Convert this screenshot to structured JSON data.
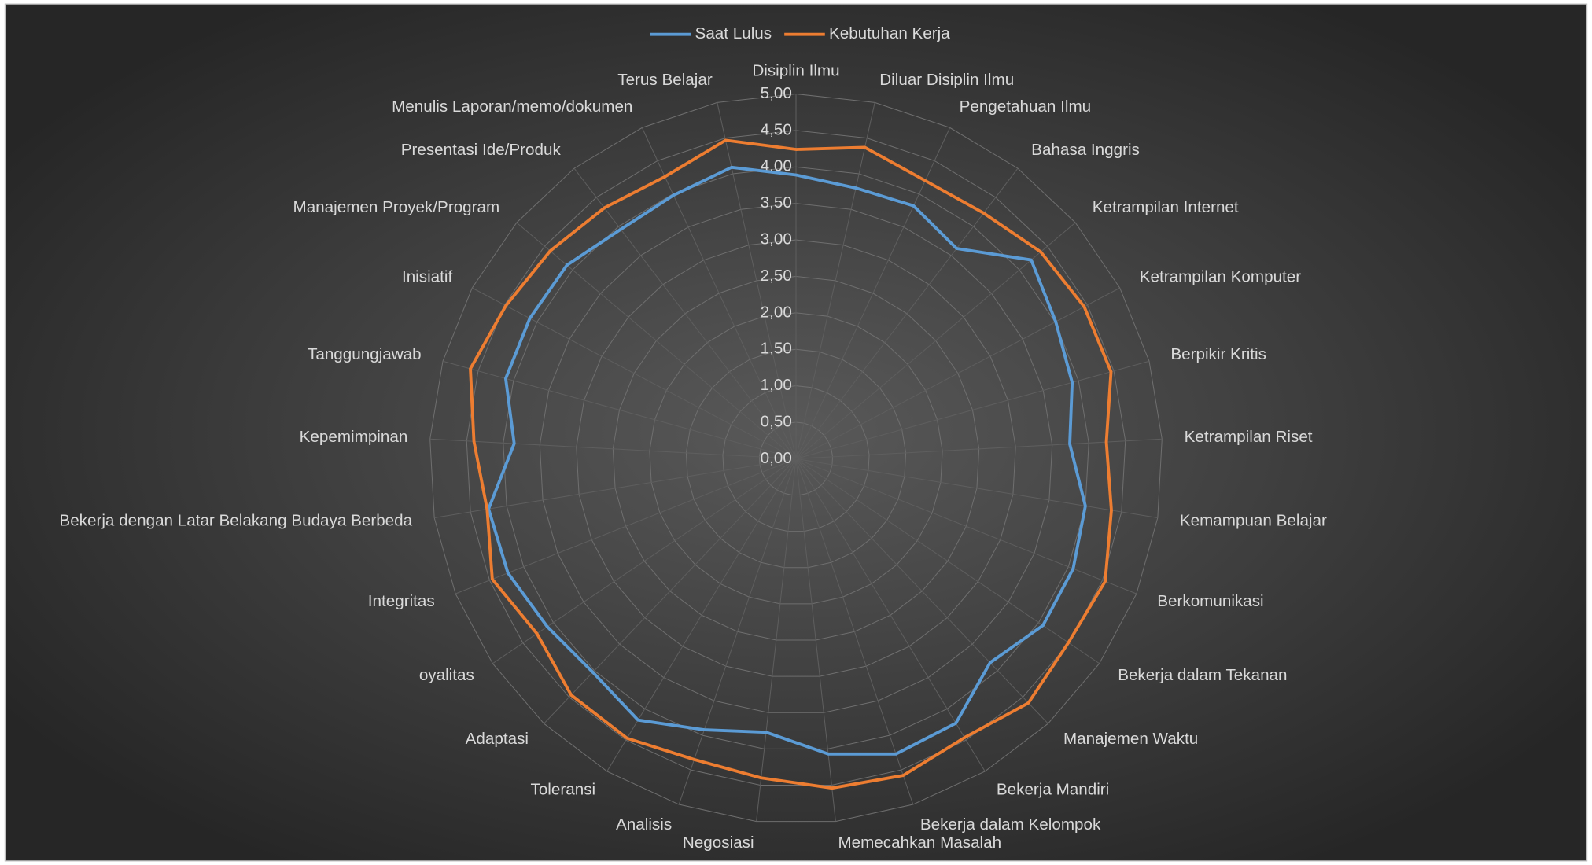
{
  "chart_data": {
    "type": "radar",
    "categories": [
      "Disiplin Ilmu",
      "Diluar Disiplin Ilmu",
      "Pengetahuan Ilmu",
      "Bahasa Inggris",
      "Ketrampilan Internet",
      "Ketrampilan Komputer",
      "Berpikir Kritis",
      "Ketrampilan Riset",
      "Kemampuan Belajar",
      "Berkomunikasi",
      "Bekerja dalam Tekanan",
      "Manajemen Waktu",
      "Bekerja Mandiri",
      "Bekerja dalam Kelompok",
      "Memecahkan Masalah",
      "Negosiasi",
      "Analisis",
      "Toleransi",
      "Adaptasi",
      "oyalitas",
      "Integritas",
      "Bekerja dengan Latar Belakang Budaya Berbeda",
      "Kepemimpinan",
      "Tanggungjawab",
      "Inisiatif",
      "Manajemen Proyek/Program",
      "Presentasi Ide/Produk",
      "Menulis Laporan/memo/dokumen",
      "Terus Belajar"
    ],
    "series": [
      {
        "name": "Saat Lulus",
        "color": "#5b9bd5",
        "values": [
          3.89,
          3.8,
          3.82,
          3.62,
          4.21,
          4.01,
          3.91,
          3.74,
          4.0,
          4.07,
          4.07,
          3.85,
          4.23,
          4.27,
          4.07,
          3.77,
          3.92,
          4.18,
          4.03,
          4.1,
          4.23,
          4.25,
          3.85,
          4.11,
          4.11,
          4.1,
          3.95,
          3.98,
          4.09
        ]
      },
      {
        "name": "Kebutuhan Kerja",
        "color": "#ed7d31",
        "values": [
          4.24,
          4.37,
          4.2,
          4.23,
          4.38,
          4.45,
          4.46,
          4.24,
          4.36,
          4.54,
          4.49,
          4.61,
          4.46,
          4.58,
          4.54,
          4.4,
          4.35,
          4.47,
          4.46,
          4.27,
          4.46,
          4.27,
          4.4,
          4.61,
          4.48,
          4.4,
          4.32,
          4.26,
          4.47
        ]
      }
    ],
    "ylim": [
      0,
      5
    ],
    "yticks": [
      {
        "value": 0,
        "label": "0,00"
      },
      {
        "value": 0.5,
        "label": "0,50"
      },
      {
        "value": 1,
        "label": "1,00"
      },
      {
        "value": 1.5,
        "label": "1,50"
      },
      {
        "value": 2,
        "label": "2,00"
      },
      {
        "value": 2.5,
        "label": "2,50"
      },
      {
        "value": 3,
        "label": "3,00"
      },
      {
        "value": 3.5,
        "label": "3,50"
      },
      {
        "value": 4,
        "label": "4,00"
      },
      {
        "value": 4.5,
        "label": "4,50"
      },
      {
        "value": 5,
        "label": "5,00"
      }
    ],
    "grid": true,
    "legend": "top"
  }
}
